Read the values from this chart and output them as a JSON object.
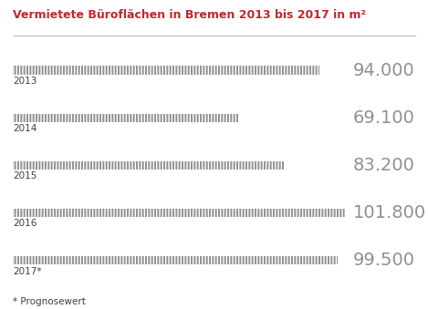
{
  "title": "Vermietete Büroflächen in Bremen 2013 bis 2017 in m²",
  "title_color": "#c0272d",
  "background_color": "#ffffff",
  "categories": [
    "2013",
    "2014",
    "2015",
    "2016",
    "2017*"
  ],
  "values": [
    94000,
    69100,
    83200,
    101800,
    99500
  ],
  "value_labels": [
    "94.000",
    "69.100",
    "83.200",
    "101.800",
    "99.500"
  ],
  "max_value": 101800,
  "bar_color": "#909090",
  "bar_height": 0.18,
  "footnote": "* Prognosewert",
  "value_label_color": "#909090",
  "year_label_color": "#404040",
  "fig_width": 4.69,
  "fig_height": 3.39,
  "dpi": 100,
  "title_fontsize": 9.0,
  "value_fontsize": 14,
  "year_fontsize": 7.5,
  "footnote_fontsize": 7.5
}
